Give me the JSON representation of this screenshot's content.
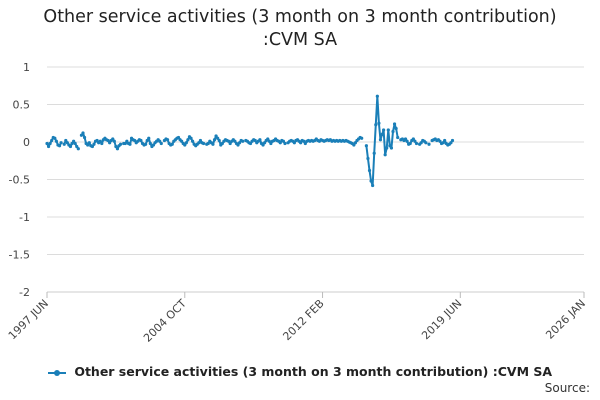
{
  "chart_data": {
    "type": "line",
    "title_line1": "Other service activities (3 month on 3 month contribution)",
    "title_line2": ":CVM SA",
    "xlabel": "",
    "ylabel": "",
    "ylim": [
      -2,
      1
    ],
    "y_ticks": [
      1,
      0.5,
      0,
      -0.5,
      -1,
      -1.5,
      -2
    ],
    "y_tick_labels": [
      "1",
      "0.5",
      "0",
      "-0.5",
      "-1",
      "-1.5",
      "-2"
    ],
    "x_range_months": [
      0,
      343
    ],
    "x_ticks": [
      {
        "month": 0,
        "label": "1997 JUN"
      },
      {
        "month": 88,
        "label": "2004 OCT"
      },
      {
        "month": 176,
        "label": "2012 FEB"
      },
      {
        "month": 264,
        "label": "2019 JUN"
      },
      {
        "month": 343,
        "label": "2026 JAN"
      }
    ],
    "series": [
      {
        "name": "Other service activities (3 month on 3 month contribution) :CVM SA",
        "color": "#1a7fb8",
        "start": "1997 JUN",
        "values": [
          -0.02,
          -0.06,
          -0.02,
          0.02,
          0.06,
          0.05,
          0.01,
          -0.04,
          -0.05,
          -0.01,
          null,
          -0.03,
          0.02,
          -0.01,
          -0.04,
          -0.06,
          -0.02,
          0.01,
          -0.02,
          -0.06,
          -0.09,
          null,
          0.09,
          0.12,
          0.06,
          -0.02,
          -0.04,
          -0.01,
          -0.05,
          -0.06,
          -0.03,
          0.01,
          0.02,
          -0.01,
          0.01,
          -0.02,
          0.03,
          0.05,
          0.03,
          0.02,
          -0.01,
          0.02,
          0.04,
          0.01,
          -0.06,
          -0.09,
          -0.05,
          -0.03,
          null,
          -0.02,
          -0.02,
          0.01,
          -0.02,
          -0.03,
          0.05,
          0.03,
          0.02,
          -0.01,
          0.01,
          0.03,
          0.02,
          -0.02,
          -0.04,
          -0.03,
          0.02,
          0.05,
          -0.02,
          -0.06,
          -0.04,
          -0.01,
          0.01,
          0.03,
          0.01,
          -0.02,
          null,
          0.02,
          0.04,
          0.03,
          -0.02,
          -0.04,
          -0.03,
          0.01,
          0.03,
          0.05,
          0.06,
          0.03,
          0.01,
          -0.02,
          -0.04,
          -0.01,
          0.03,
          0.07,
          0.05,
          0.01,
          -0.03,
          -0.05,
          -0.03,
          -0.01,
          0.02,
          -0.01,
          -0.02,
          null,
          -0.03,
          -0.02,
          0.01,
          -0.01,
          -0.03,
          0.03,
          0.08,
          0.05,
          0.02,
          -0.04,
          -0.02,
          0.01,
          0.03,
          0.02,
          0.01,
          -0.02,
          0.01,
          0.03,
          0.01,
          -0.02,
          -0.04,
          -0.01,
          0.02,
          0.01,
          null,
          0.02,
          0.01,
          -0.01,
          -0.02,
          0.01,
          0.03,
          0.02,
          -0.01,
          0.01,
          0.03,
          -0.02,
          -0.04,
          -0.01,
          0.02,
          0.04,
          0.01,
          -0.02,
          0.01,
          0.02,
          0.04,
          0.02,
          0.01,
          -0.01,
          0.02,
          0.01,
          -0.02,
          null,
          -0.01,
          0.01,
          0.02,
          0.01,
          -0.01,
          0.02,
          0.03,
          0.01,
          -0.01,
          0.02,
          0.01,
          -0.02,
          0.01,
          0.02,
          0.01,
          0.02,
          0.01,
          0.02,
          0.04,
          0.02,
          0.01,
          0.03,
          0.02,
          0.01,
          0.02,
          0.03,
          0.02,
          0.03,
          0.01,
          0.02,
          0.01,
          0.02,
          0.01,
          0.02,
          0.01,
          0.02,
          0.01,
          0.02,
          0.01,
          0.0,
          -0.01,
          -0.02,
          -0.04,
          -0.01,
          0.02,
          0.04,
          0.06,
          0.05,
          null,
          null,
          -0.05,
          -0.22,
          -0.38,
          -0.52,
          -0.58,
          -0.15,
          0.23,
          0.61,
          0.25,
          0.03,
          0.1,
          0.16,
          -0.17,
          -0.08,
          0.16,
          -0.05,
          -0.08,
          0.14,
          0.24,
          0.18,
          0.06,
          null,
          0.03,
          0.04,
          0.02,
          0.04,
          0.01,
          -0.03,
          -0.02,
          0.02,
          0.04,
          0.01,
          -0.02,
          null,
          -0.03,
          -0.01,
          0.02,
          0.01,
          -0.01,
          null,
          -0.03,
          null,
          0.02,
          0.03,
          0.04,
          0.02,
          0.03,
          0.01,
          -0.02,
          -0.01,
          0.02,
          -0.02,
          -0.04,
          -0.03,
          -0.01,
          0.02
        ]
      }
    ]
  },
  "legend": {
    "label": "Other service activities (3 month on 3 month contribution) :CVM SA"
  },
  "source_label": "Source:"
}
